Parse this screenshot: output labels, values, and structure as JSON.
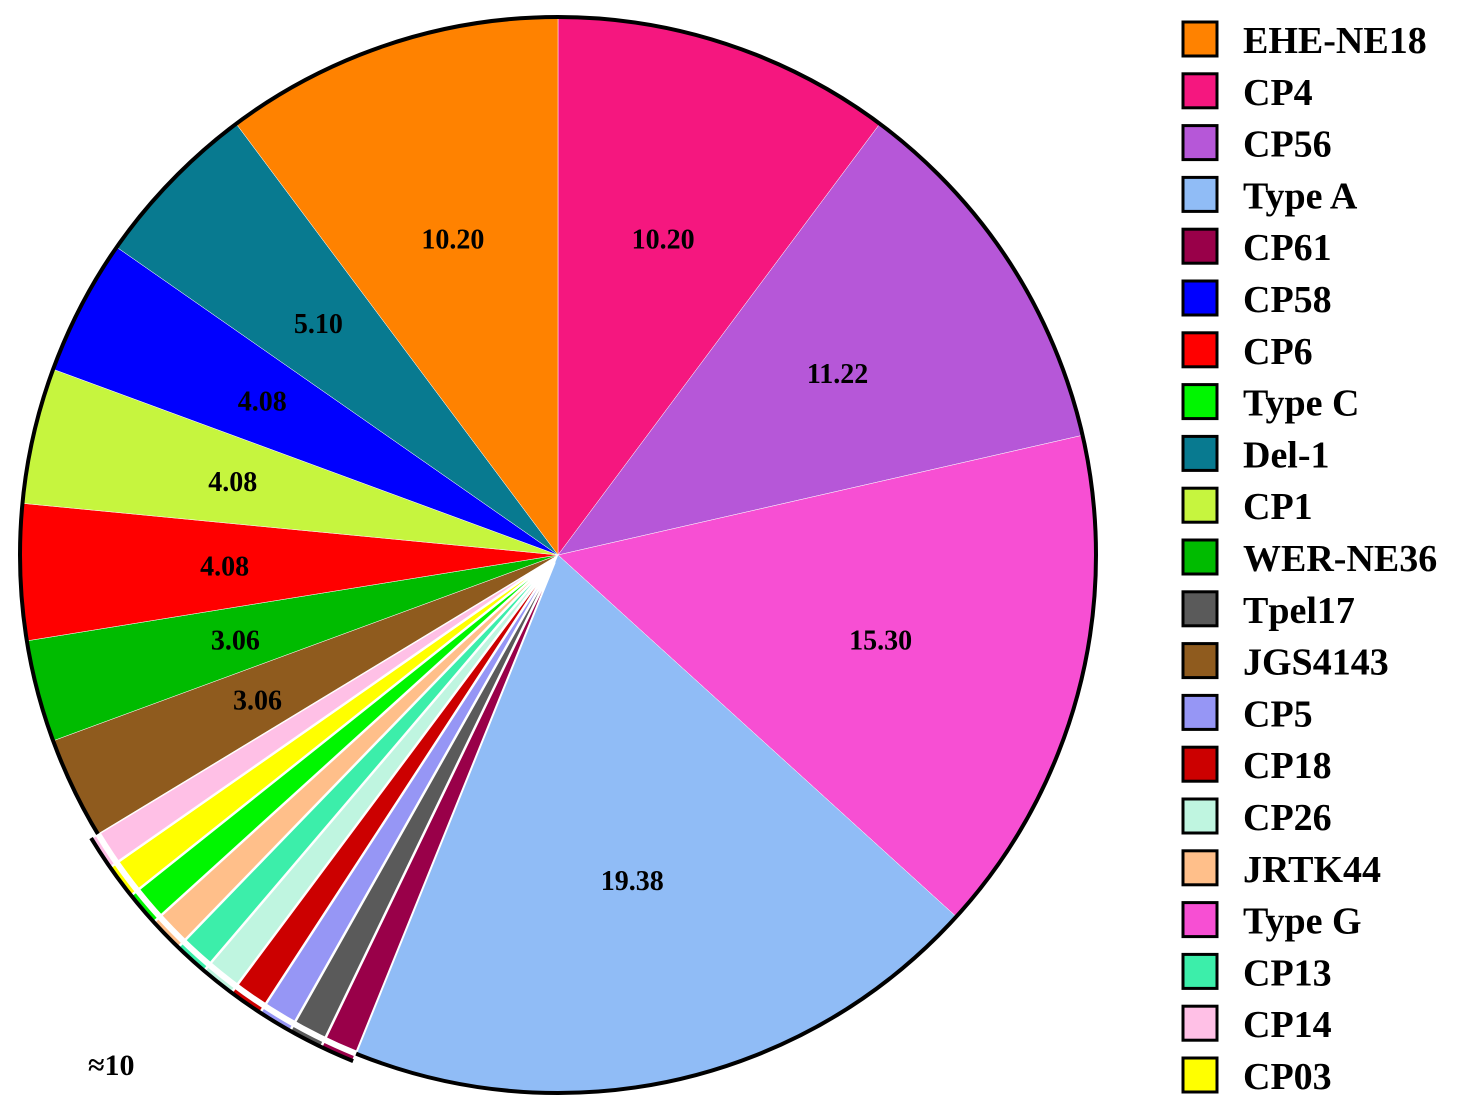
{
  "chart_data": {
    "type": "pie",
    "title": "",
    "slices": [
      {
        "name": "CP4",
        "value": 10.2,
        "label": "10.20",
        "color": "#F5177F"
      },
      {
        "name": "CP56",
        "value": 11.22,
        "label": "11.22",
        "color": "#B657D8"
      },
      {
        "name": "Type G",
        "value": 15.3,
        "label": "15.30",
        "color": "#F74FD3"
      },
      {
        "name": "Type A",
        "value": 19.38,
        "label": "19.38",
        "color": "#90BCF6"
      },
      {
        "name": "CP61",
        "value": 1.02,
        "label": "",
        "color": "#990049"
      },
      {
        "name": "Tpel17",
        "value": 1.02,
        "label": "",
        "color": "#5A5A5A"
      },
      {
        "name": "CP5",
        "value": 1.02,
        "label": "",
        "color": "#9696F5"
      },
      {
        "name": "CP18",
        "value": 1.02,
        "label": "",
        "color": "#CC0000"
      },
      {
        "name": "CP26",
        "value": 1.02,
        "label": "",
        "color": "#BFF5E0"
      },
      {
        "name": "CP13",
        "value": 1.02,
        "label": "",
        "color": "#3CEEAA"
      },
      {
        "name": "JRTK44",
        "value": 1.02,
        "label": "",
        "color": "#FFBF8A"
      },
      {
        "name": "Type C",
        "value": 1.02,
        "label": "",
        "color": "#00F600"
      },
      {
        "name": "CP03",
        "value": 1.02,
        "label": "",
        "color": "#FFFF00"
      },
      {
        "name": "CP14",
        "value": 1.02,
        "label": "",
        "color": "#FFC0E6"
      },
      {
        "name": "JGS4143",
        "value": 3.06,
        "label": "3.06",
        "color": "#8F5B1E"
      },
      {
        "name": "WER-NE36",
        "value": 3.06,
        "label": "3.06",
        "color": "#00BB00"
      },
      {
        "name": "CP6",
        "value": 4.08,
        "label": "4.08",
        "color": "#FF0000"
      },
      {
        "name": "CP1",
        "value": 4.08,
        "label": "4.08",
        "color": "#C6F53E"
      },
      {
        "name": "CP58",
        "value": 4.08,
        "label": "4.08",
        "color": "#0000FF"
      },
      {
        "name": "Del-1",
        "value": 5.1,
        "label": "5.10",
        "color": "#087A90"
      },
      {
        "name": "EHE-NE18",
        "value": 10.2,
        "label": "10.20",
        "color": "#FF8200"
      }
    ],
    "legend": {
      "placement": "right",
      "items": [
        {
          "name": "EHE-NE18",
          "color": "#FF8200"
        },
        {
          "name": "CP4",
          "color": "#F5177F"
        },
        {
          "name": "CP56",
          "color": "#B657D8"
        },
        {
          "name": "Type A",
          "color": "#90BCF6"
        },
        {
          "name": "CP61",
          "color": "#990049"
        },
        {
          "name": "CP58",
          "color": "#0000FF"
        },
        {
          "name": "CP6",
          "color": "#FF0000"
        },
        {
          "name": "Type C",
          "color": "#00F600"
        },
        {
          "name": "Del-1",
          "color": "#087A90"
        },
        {
          "name": "CP1",
          "color": "#C6F53E"
        },
        {
          "name": "WER-NE36",
          "color": "#00BB00"
        },
        {
          "name": "Tpel17",
          "color": "#5A5A5A"
        },
        {
          "name": "JGS4143",
          "color": "#8F5B1E"
        },
        {
          "name": "CP5",
          "color": "#9696F5"
        },
        {
          "name": "CP18",
          "color": "#CC0000"
        },
        {
          "name": "CP26",
          "color": "#BFF5E0"
        },
        {
          "name": "JRTK44",
          "color": "#FFBF8A"
        },
        {
          "name": "Type G",
          "color": "#F74FD3"
        },
        {
          "name": "CP13",
          "color": "#3CEEAA"
        },
        {
          "name": "CP14",
          "color": "#FFC0E6"
        },
        {
          "name": "CP03",
          "color": "#FFFF00"
        }
      ]
    },
    "annotation": "≈10"
  }
}
